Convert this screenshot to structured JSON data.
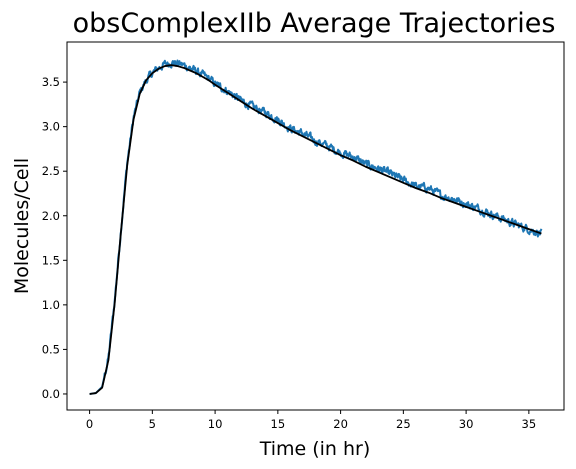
{
  "chart_data": {
    "type": "line",
    "title": "obsComplexIIb Average Trajectories",
    "xlabel": "Time (in hr)",
    "ylabel": "Molecules/Cell",
    "xlim": [
      -1.8,
      37.8
    ],
    "ylim": [
      -0.18,
      3.95
    ],
    "xticks": [
      0,
      5,
      10,
      15,
      20,
      25,
      30,
      35
    ],
    "yticks": [
      0.0,
      0.5,
      1.0,
      1.5,
      2.0,
      2.5,
      3.0,
      3.5
    ],
    "xtick_labels": [
      "0",
      "5",
      "10",
      "15",
      "20",
      "25",
      "30",
      "35"
    ],
    "ytick_labels": [
      "0.0",
      "0.5",
      "1.0",
      "1.5",
      "2.0",
      "2.5",
      "3.0",
      "3.5"
    ],
    "grid": false,
    "series": [
      {
        "color": "#1f77b4",
        "style": "noisy simulation average",
        "x": [
          0,
          0.5,
          1,
          1.5,
          2,
          2.5,
          3,
          3.5,
          4,
          4.5,
          5,
          5.5,
          6,
          6.5,
          7,
          7.5,
          8,
          8.5,
          9,
          9.5,
          10,
          11,
          12,
          13,
          14,
          15,
          16,
          17,
          18,
          19,
          20,
          21,
          22,
          23,
          24,
          25,
          26,
          27,
          28,
          29,
          30,
          31,
          32,
          33,
          34,
          35,
          36
        ],
        "y": [
          0.0,
          0.01,
          0.08,
          0.4,
          1.05,
          1.85,
          2.6,
          3.1,
          3.38,
          3.52,
          3.6,
          3.66,
          3.7,
          3.72,
          3.71,
          3.69,
          3.66,
          3.62,
          3.58,
          3.54,
          3.48,
          3.4,
          3.3,
          3.22,
          3.16,
          3.08,
          2.98,
          2.92,
          2.84,
          2.78,
          2.71,
          2.66,
          2.58,
          2.53,
          2.47,
          2.4,
          2.33,
          2.31,
          2.23,
          2.19,
          2.13,
          2.08,
          2.02,
          1.96,
          1.9,
          1.85,
          1.8
        ]
      },
      {
        "color": "#000000",
        "style": "smooth mean trajectory",
        "x": [
          0,
          0.5,
          1,
          1.5,
          2,
          2.5,
          3,
          3.5,
          4,
          4.5,
          5,
          5.5,
          6,
          6.5,
          7,
          7.5,
          8,
          8.5,
          9,
          9.5,
          10,
          11,
          12,
          13,
          14,
          15,
          16,
          17,
          18,
          19,
          20,
          21,
          22,
          23,
          24,
          25,
          26,
          27,
          28,
          29,
          30,
          31,
          32,
          33,
          34,
          35,
          36
        ],
        "y": [
          0.0,
          0.01,
          0.07,
          0.38,
          1.02,
          1.82,
          2.57,
          3.08,
          3.37,
          3.52,
          3.6,
          3.65,
          3.68,
          3.69,
          3.68,
          3.66,
          3.63,
          3.6,
          3.56,
          3.52,
          3.47,
          3.38,
          3.29,
          3.2,
          3.12,
          3.04,
          2.96,
          2.89,
          2.82,
          2.75,
          2.68,
          2.62,
          2.55,
          2.49,
          2.43,
          2.37,
          2.31,
          2.26,
          2.2,
          2.15,
          2.1,
          2.05,
          2.0,
          1.95,
          1.9,
          1.85,
          1.8
        ]
      }
    ]
  }
}
